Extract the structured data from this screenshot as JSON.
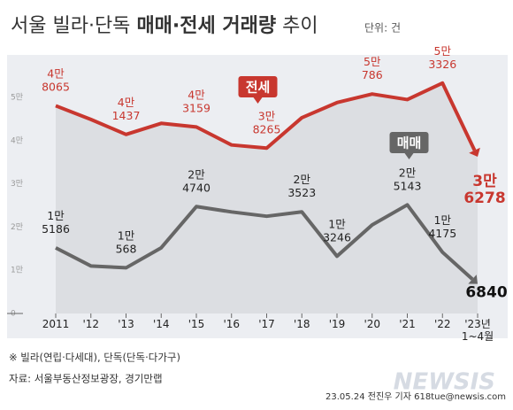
{
  "chart_data": {
    "type": "line",
    "title": [
      "서울 빌라·단독",
      "매매·전세 거래량",
      "추이"
    ],
    "unit": "단위: 건",
    "categories": [
      "2011",
      "'12",
      "'13",
      "'14",
      "'15",
      "'16",
      "'17",
      "'18",
      "'19",
      "'20",
      "'21",
      "'22",
      "'23년 1~4월"
    ],
    "series": [
      {
        "name": "전세",
        "color": "#c8372f",
        "values": [
          48065,
          44900,
          41437,
          44000,
          43159,
          39000,
          38265,
          45300,
          48800,
          50786,
          49500,
          53326,
          36278
        ],
        "value_labels": [
          "4만 8065",
          null,
          "4만 1437",
          null,
          "4만 3159",
          null,
          "3만 8265",
          null,
          null,
          "5만 786",
          null,
          "5만 3326",
          "3만 6278"
        ]
      },
      {
        "name": "매매",
        "color": "#666666",
        "values": [
          15186,
          11000,
          10568,
          15200,
          24740,
          23500,
          22500,
          23523,
          13246,
          20500,
          25143,
          14175,
          6840
        ],
        "value_labels": [
          "1만 5186",
          null,
          "1만 568",
          null,
          "2만 4740",
          null,
          null,
          "2만 3523",
          "1만 3246",
          null,
          "2만 5143",
          "1만 4175",
          "6840"
        ]
      }
    ],
    "ylim": [
      0,
      50000
    ],
    "yticks": [
      0,
      {
        "value": 10000,
        "label": "1만"
      },
      {
        "value": 20000,
        "label": "2만"
      },
      {
        "value": 30000,
        "label": "3만"
      },
      {
        "value": 40000,
        "label": "4만"
      },
      {
        "value": 50000,
        "label": "5만"
      }
    ],
    "note": "※ 빌라(연립·다세대), 단독(단독·다가구)",
    "source": "자료: 서울부동산정보광장, 경기만랩",
    "credit": "23.05.24 전진우 기자 618tue@newsis.com",
    "brand": "NEWSIS"
  }
}
